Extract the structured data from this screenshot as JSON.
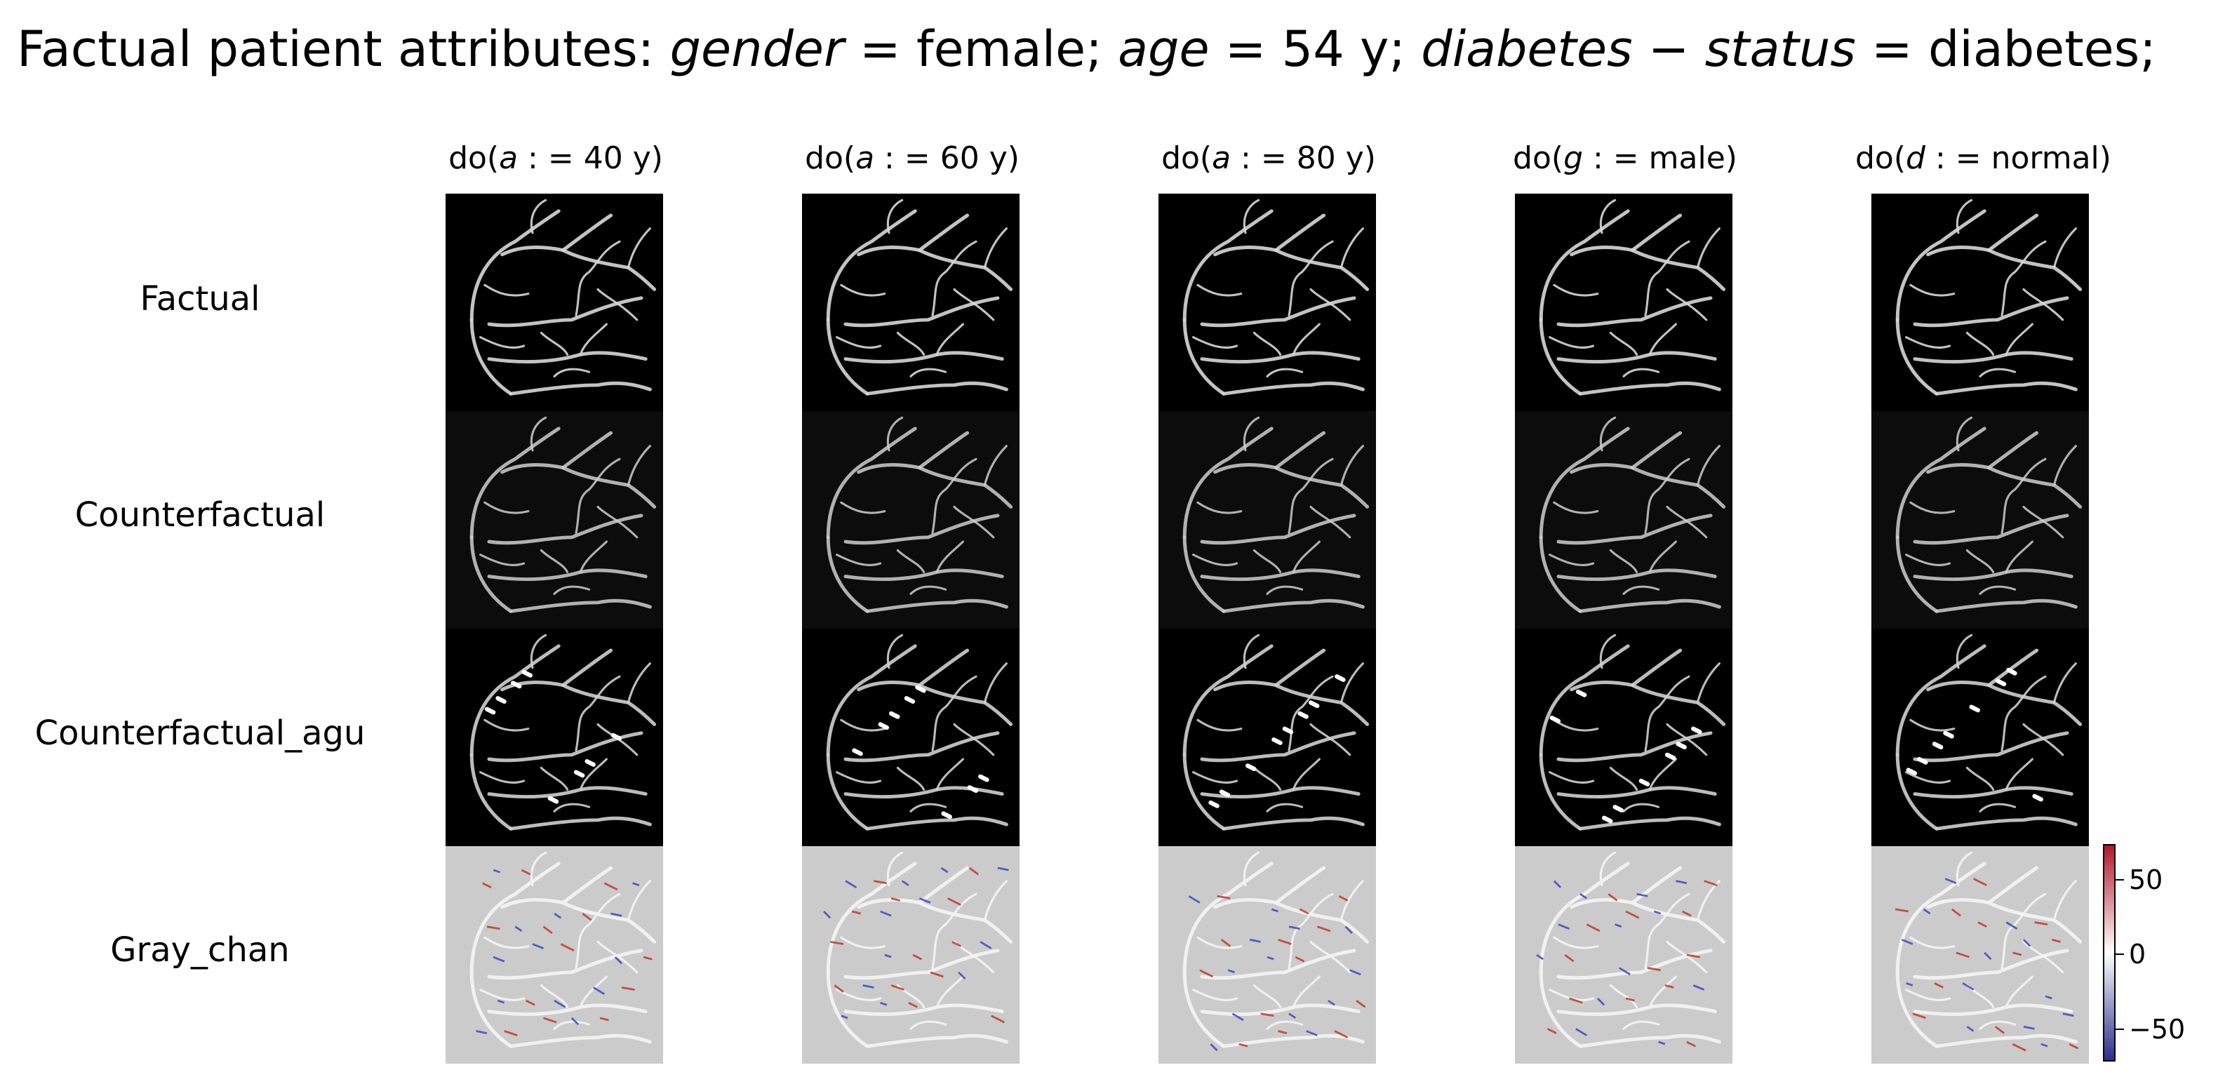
{
  "title": {
    "prefix": "Factual patient attributes: ",
    "items": [
      {
        "var": "gender",
        "eq": " = ",
        "val": "female;"
      },
      {
        "var": "age",
        "eq": " = ",
        "val": "54 y;"
      },
      {
        "var": "diabetes − status",
        "eq": " = ",
        "val": "diabetes;"
      }
    ]
  },
  "columns": [
    {
      "pre": "do(",
      "var": "a",
      "rest": " : = 40 y)"
    },
    {
      "pre": "do(",
      "var": "a",
      "rest": " : = 60 y)"
    },
    {
      "pre": "do(",
      "var": "a",
      "rest": " : = 80 y)"
    },
    {
      "pre": "do(",
      "var": "g",
      "rest": " : = male)"
    },
    {
      "pre": "do(",
      "var": "d",
      "rest": " : = normal)"
    }
  ],
  "rows": [
    "Factual",
    "Counterfactual",
    "Counterfactual_agu",
    "Gray_chan"
  ],
  "colorbar": {
    "ticks": [
      "50",
      "0",
      "−50"
    ],
    "colors": {
      "low": "#2c2c8f",
      "mid": "#ffffff",
      "high": "#b2182b"
    }
  },
  "colors": {
    "image_bg": "#000000",
    "cf_bg": "#0c0c0c",
    "diff_bg": "#cbcbcb"
  }
}
